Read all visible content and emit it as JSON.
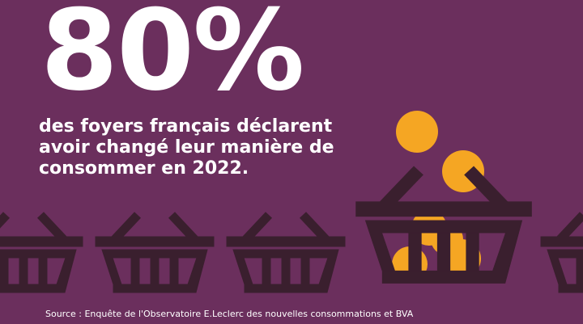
{
  "headline": {
    "value": "80%",
    "lines": [
      "des foyers français déclarent",
      "avoir changé leur manière de",
      "consommer en 2022."
    ]
  },
  "source": "Source : Enquête de l'Observatoire E.Leclerc des nouvelles consommations et BVA",
  "colors": {
    "background": "#6b2f5d",
    "basket": "#3a1f2e",
    "coin": "#f5a623",
    "text": "#ffffff"
  },
  "illustration": {
    "basket_icon": "shopping-basket-icon",
    "coin_icon": "coin-icon"
  }
}
